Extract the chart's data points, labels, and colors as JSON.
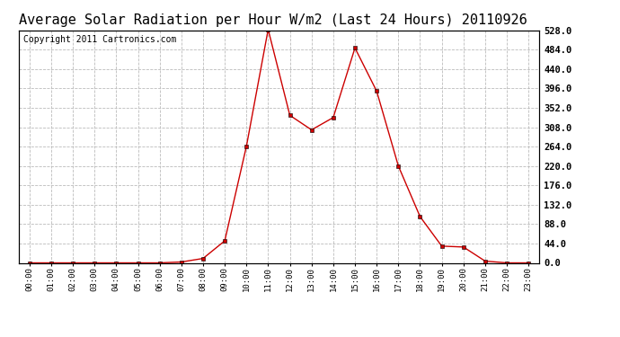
{
  "title": "Average Solar Radiation per Hour W/m2 (Last 24 Hours) 20110926",
  "copyright": "Copyright 2011 Cartronics.com",
  "hours": [
    "00:00",
    "01:00",
    "02:00",
    "03:00",
    "04:00",
    "05:00",
    "06:00",
    "07:00",
    "08:00",
    "09:00",
    "10:00",
    "11:00",
    "12:00",
    "13:00",
    "14:00",
    "15:00",
    "16:00",
    "17:00",
    "18:00",
    "19:00",
    "20:00",
    "21:00",
    "22:00",
    "23:00"
  ],
  "values": [
    0,
    0,
    0,
    0,
    0,
    0,
    0,
    2,
    10,
    50,
    265,
    530,
    335,
    302,
    330,
    488,
    390,
    220,
    105,
    38,
    36,
    4,
    0,
    0
  ],
  "line_color": "#cc0000",
  "marker": "s",
  "marker_size": 3,
  "bg_color": "#ffffff",
  "grid_color": "#bbbbbb",
  "ylim_min": 0,
  "ylim_max": 528,
  "yticks": [
    0,
    44,
    88,
    132,
    176,
    220,
    264,
    308,
    352,
    396,
    440,
    484,
    528
  ],
  "title_fontsize": 11,
  "copyright_fontsize": 7
}
